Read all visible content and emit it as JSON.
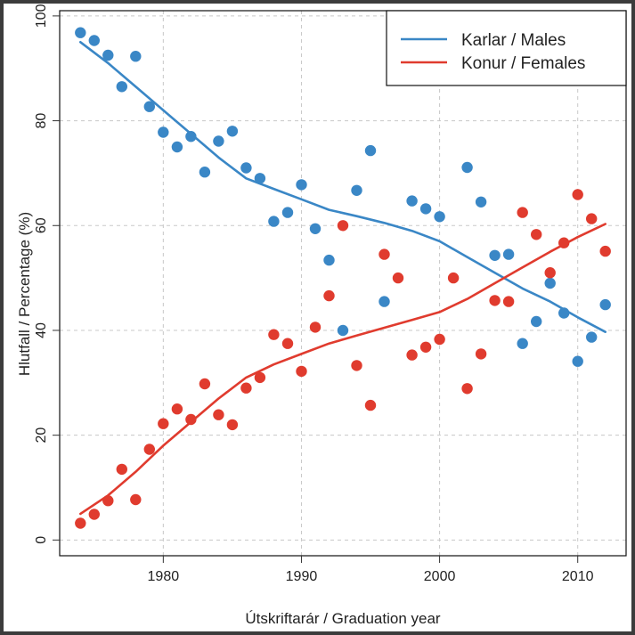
{
  "chart_data": {
    "type": "scatter",
    "xlabel": "Útskriftarár / Graduation year",
    "ylabel": "Hlutfall / Percentage (%)",
    "xlim": [
      1972.5,
      2013.5
    ],
    "ylim": [
      -3,
      101
    ],
    "x_ticks": [
      1980,
      1990,
      2000,
      2010
    ],
    "y_ticks": [
      0,
      20,
      40,
      60,
      80,
      100
    ],
    "grid": true,
    "legend_position": "top-right",
    "series": [
      {
        "name": "Karlar / Males",
        "color": "#3a87c6",
        "points": [
          [
            1974,
            96.8
          ],
          [
            1975,
            95.3
          ],
          [
            1976,
            92.5
          ],
          [
            1977,
            86.5
          ],
          [
            1978,
            92.3
          ],
          [
            1979,
            82.7
          ],
          [
            1980,
            77.8
          ],
          [
            1981,
            75.0
          ],
          [
            1982,
            77.0
          ],
          [
            1983,
            70.2
          ],
          [
            1984,
            76.1
          ],
          [
            1985,
            78.0
          ],
          [
            1986,
            71.0
          ],
          [
            1987,
            69.0
          ],
          [
            1988,
            60.8
          ],
          [
            1989,
            62.5
          ],
          [
            1990,
            67.8
          ],
          [
            1991,
            59.4
          ],
          [
            1992,
            53.4
          ],
          [
            1993,
            40.0
          ],
          [
            1994,
            66.7
          ],
          [
            1995,
            74.3
          ],
          [
            1996,
            45.5
          ],
          [
            1998,
            64.7
          ],
          [
            1999,
            63.2
          ],
          [
            2000,
            61.7
          ],
          [
            2002,
            71.1
          ],
          [
            2003,
            64.5
          ],
          [
            2004,
            54.3
          ],
          [
            2005,
            54.5
          ],
          [
            2006,
            37.5
          ],
          [
            2007,
            41.7
          ],
          [
            2008,
            49.0
          ],
          [
            2009,
            43.3
          ],
          [
            2010,
            34.1
          ],
          [
            2011,
            38.7
          ],
          [
            2012,
            44.9
          ]
        ],
        "trend": [
          [
            1974,
            95.0
          ],
          [
            1976,
            91.0
          ],
          [
            1978,
            86.5
          ],
          [
            1980,
            82.0
          ],
          [
            1982,
            77.5
          ],
          [
            1984,
            73.0
          ],
          [
            1986,
            69.0
          ],
          [
            1988,
            67.0
          ],
          [
            1990,
            65.0
          ],
          [
            1992,
            63.0
          ],
          [
            1994,
            61.8
          ],
          [
            1996,
            60.5
          ],
          [
            1998,
            59.0
          ],
          [
            2000,
            57.0
          ],
          [
            2002,
            54.0
          ],
          [
            2004,
            51.0
          ],
          [
            2006,
            48.0
          ],
          [
            2008,
            45.5
          ],
          [
            2010,
            42.5
          ],
          [
            2012,
            39.7
          ]
        ]
      },
      {
        "name": "Konur / Females",
        "color": "#e03b2e",
        "points": [
          [
            1974,
            3.2
          ],
          [
            1975,
            4.9
          ],
          [
            1976,
            7.5
          ],
          [
            1977,
            13.5
          ],
          [
            1978,
            7.7
          ],
          [
            1979,
            17.3
          ],
          [
            1980,
            22.2
          ],
          [
            1981,
            25.0
          ],
          [
            1982,
            23.0
          ],
          [
            1983,
            29.8
          ],
          [
            1984,
            23.9
          ],
          [
            1985,
            22.0
          ],
          [
            1986,
            29.0
          ],
          [
            1987,
            31.0
          ],
          [
            1988,
            39.2
          ],
          [
            1989,
            37.5
          ],
          [
            1990,
            32.2
          ],
          [
            1991,
            40.6
          ],
          [
            1992,
            46.6
          ],
          [
            1993,
            60.0
          ],
          [
            1994,
            33.3
          ],
          [
            1995,
            25.7
          ],
          [
            1996,
            54.5
          ],
          [
            1997,
            50.0
          ],
          [
            1998,
            35.3
          ],
          [
            1999,
            36.8
          ],
          [
            2000,
            38.3
          ],
          [
            2001,
            50.0
          ],
          [
            2002,
            28.9
          ],
          [
            2003,
            35.5
          ],
          [
            2004,
            45.7
          ],
          [
            2005,
            45.5
          ],
          [
            2006,
            62.5
          ],
          [
            2007,
            58.3
          ],
          [
            2008,
            51.0
          ],
          [
            2009,
            56.7
          ],
          [
            2010,
            65.9
          ],
          [
            2011,
            61.3
          ],
          [
            2012,
            55.1
          ]
        ],
        "trend": [
          [
            1974,
            5.0
          ],
          [
            1976,
            8.5
          ],
          [
            1978,
            13.0
          ],
          [
            1980,
            18.0
          ],
          [
            1982,
            22.5
          ],
          [
            1984,
            27.0
          ],
          [
            1986,
            31.0
          ],
          [
            1988,
            33.5
          ],
          [
            1990,
            35.5
          ],
          [
            1992,
            37.5
          ],
          [
            1994,
            39.0
          ],
          [
            1996,
            40.5
          ],
          [
            1998,
            42.0
          ],
          [
            2000,
            43.5
          ],
          [
            2002,
            46.0
          ],
          [
            2004,
            49.0
          ],
          [
            2006,
            52.0
          ],
          [
            2008,
            55.0
          ],
          [
            2010,
            57.8
          ],
          [
            2012,
            60.3
          ]
        ]
      }
    ]
  }
}
